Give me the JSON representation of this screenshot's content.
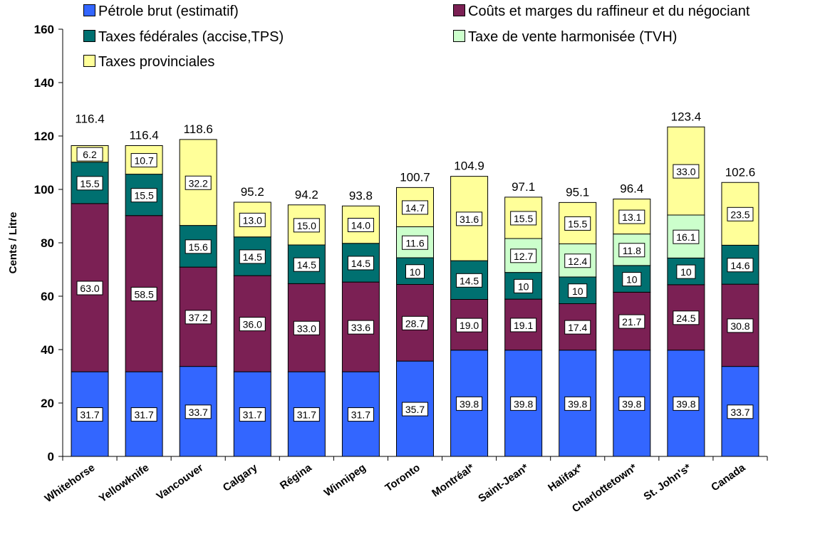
{
  "chart_data": {
    "type": "bar",
    "stacked": true,
    "title": "",
    "xlabel": "",
    "ylabel": "Cents / Litre",
    "ylim": [
      0,
      160
    ],
    "yticks": [
      0,
      20,
      40,
      60,
      80,
      100,
      120,
      140,
      160
    ],
    "grid": false,
    "legend_position": "top",
    "categories": [
      "Whitehorse",
      "Yellowknife",
      "Vancouver",
      "Calgary",
      "Régina",
      "Winnipeg",
      "Toronto",
      "Montréal*",
      "Saint-Jean*",
      "Halifax*",
      "Charlottetown*",
      "St. John's*",
      "Canada"
    ],
    "totals": [
      "116.4",
      "116.4",
      "118.6",
      "95.2",
      "94.2",
      "93.8",
      "100.7",
      "104.9",
      "97.1",
      "95.1",
      "96.4",
      "123.4",
      "102.6"
    ],
    "series": [
      {
        "name": "Pétrole brut (estimatif)",
        "color": "#3366FF",
        "values": [
          31.7,
          31.7,
          33.7,
          31.7,
          31.7,
          31.7,
          35.7,
          39.8,
          39.8,
          39.8,
          39.8,
          39.8,
          33.7
        ],
        "labels": [
          "31.7",
          "31.7",
          "33.7",
          "31.7",
          "31.7",
          "31.7",
          "35.7",
          "39.8",
          "39.8",
          "39.8",
          "39.8",
          "39.8",
          "33.7"
        ]
      },
      {
        "name": "Coûts et marges du raffineur et du négociant",
        "color": "#7B2054",
        "values": [
          63.0,
          58.5,
          37.2,
          36.0,
          33.0,
          33.6,
          28.7,
          19.0,
          19.1,
          17.4,
          21.7,
          24.5,
          30.8
        ],
        "labels": [
          "63.0",
          "58.5",
          "37.2",
          "36.0",
          "33.0",
          "33.6",
          "28.7",
          "19.0",
          "19.1",
          "17.4",
          "21.7",
          "24.5",
          "30.8"
        ]
      },
      {
        "name": "Taxes fédérales (accise,TPS)",
        "color": "#007070",
        "values": [
          15.5,
          15.5,
          15.6,
          14.5,
          14.5,
          14.5,
          10,
          14.5,
          10,
          10,
          10,
          10,
          14.6
        ],
        "labels": [
          "15.5",
          "15.5",
          "15.6",
          "14.5",
          "14.5",
          "14.5",
          "10",
          "14.5",
          "10",
          "10",
          "10",
          "10",
          "14.6"
        ]
      },
      {
        "name": "Taxe de vente harmonisée (TVH)",
        "color": "#CCFFCC",
        "values": [
          0,
          0,
          0,
          0,
          0,
          0,
          11.6,
          0,
          12.7,
          12.4,
          11.8,
          16.1,
          0
        ],
        "labels": [
          "",
          "",
          "",
          "",
          "",
          "",
          "11.6",
          "",
          "12.7",
          "12.4",
          "11.8",
          "16.1",
          ""
        ]
      },
      {
        "name": "Taxes provinciales",
        "color": "#FFFF99",
        "values": [
          6.2,
          10.7,
          32.2,
          13.0,
          15.0,
          14.0,
          14.7,
          31.6,
          15.5,
          15.5,
          13.1,
          33.0,
          23.5
        ],
        "labels": [
          "6.2",
          "10.7",
          "32.2",
          "13.0",
          "15.0",
          "14.0",
          "14.7",
          "31.6",
          "15.5",
          "15.5",
          "13.1",
          "33.0",
          "23.5"
        ]
      }
    ]
  }
}
